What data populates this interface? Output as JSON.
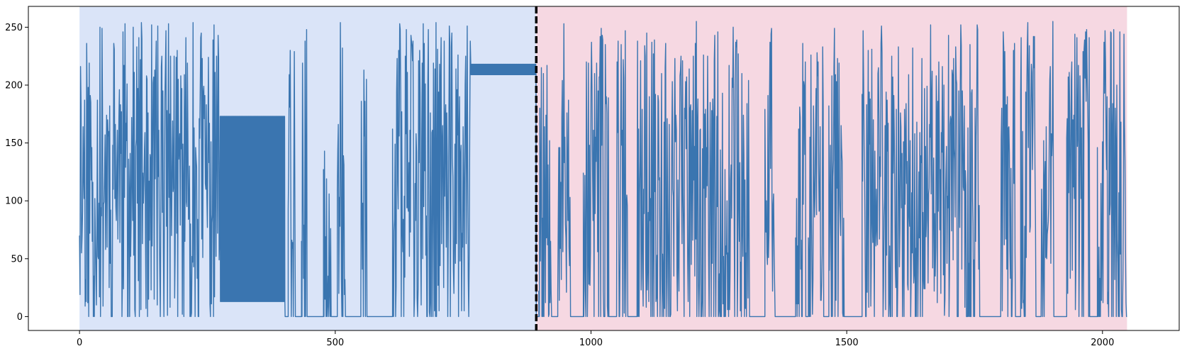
{
  "chart_data": {
    "type": "line",
    "title": "",
    "xlabel": "",
    "ylabel": "",
    "xlim": [
      -100,
      2150
    ],
    "ylim": [
      -12,
      268
    ],
    "x_ticks": [
      0,
      500,
      1000,
      1500,
      2000
    ],
    "y_ticks": [
      0,
      50,
      100,
      150,
      200,
      250
    ],
    "x_tick_labels": [
      "0",
      "500",
      "1000",
      "1500",
      "2000"
    ],
    "y_tick_labels": [
      "0",
      "50",
      "100",
      "150",
      "200",
      "250"
    ],
    "grid": false,
    "legend": "none",
    "line_color": "#3a75b0",
    "split_line": {
      "x": 893,
      "color": "#000000",
      "style": "dashed"
    },
    "regions": [
      {
        "x0": 0,
        "x1": 893,
        "color": "#dae4f8"
      },
      {
        "x0": 893,
        "x1": 2048,
        "color": "#f6d8e2"
      }
    ],
    "segments": [
      {
        "x0": 0,
        "x1": 275,
        "kind": "noise",
        "min": 0,
        "max": 255,
        "seed": 11,
        "step": 1
      },
      {
        "x0": 275,
        "x1": 402,
        "kind": "band",
        "low": 13,
        "high": 173
      },
      {
        "x0": 402,
        "x1": 612,
        "kind": "bursts",
        "zero": 0,
        "seed": 23,
        "bursts": [
          [
            408,
            422
          ],
          [
            434,
            446
          ],
          [
            477,
            492
          ],
          [
            504,
            520
          ],
          [
            550,
            562
          ]
        ]
      },
      {
        "x0": 612,
        "x1": 765,
        "kind": "noise",
        "min": 0,
        "max": 255,
        "seed": 37,
        "step": 1
      },
      {
        "x0": 765,
        "x1": 893,
        "kind": "band",
        "low": 209,
        "high": 218
      },
      {
        "x0": 893,
        "x1": 2048,
        "kind": "bursts",
        "zero": 0,
        "seed": 53,
        "bursts": [
          [
            898,
            925
          ],
          [
            935,
            960
          ],
          [
            985,
            1035
          ],
          [
            1050,
            1072
          ],
          [
            1090,
            1310
          ],
          [
            1340,
            1360
          ],
          [
            1400,
            1420
          ],
          [
            1425,
            1455
          ],
          [
            1465,
            1495
          ],
          [
            1530,
            1760
          ],
          [
            1800,
            1830
          ],
          [
            1840,
            1870
          ],
          [
            1880,
            1905
          ],
          [
            1930,
            1975
          ],
          [
            1990,
            2048
          ]
        ]
      }
    ]
  }
}
